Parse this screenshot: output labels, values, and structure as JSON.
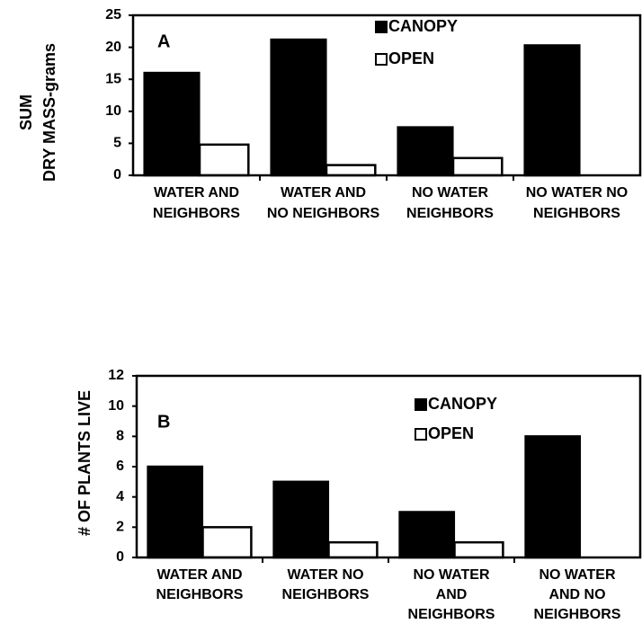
{
  "chart_data": [
    {
      "type": "bar",
      "label": "A",
      "ylabel": [
        "SUM",
        "DRY MASS-grams"
      ],
      "categories": [
        [
          "WATER AND",
          "NEIGHBORS"
        ],
        [
          "WATER AND",
          "NO NEIGHBORS"
        ],
        [
          "NO WATER",
          "NEIGHBORS"
        ],
        [
          "NO WATER NO",
          "NEIGHBORS"
        ]
      ],
      "series": [
        {
          "name": "CANOPY",
          "color": "#000000",
          "values": [
            16,
            21.2,
            7.5,
            20.3
          ]
        },
        {
          "name": "OPEN",
          "color": "#ffffff",
          "values": [
            4.8,
            1.6,
            2.7,
            0
          ]
        }
      ],
      "ylim": [
        0,
        25
      ],
      "yticks": [
        0,
        5,
        10,
        15,
        20,
        25
      ]
    },
    {
      "type": "bar",
      "label": "B",
      "ylabel": [
        "# OF PLANTS LIVE"
      ],
      "categories": [
        [
          "WATER  AND",
          "NEIGHBORS"
        ],
        [
          "WATER NO",
          "NEIGHBORS"
        ],
        [
          "NO WATER",
          "AND",
          "NEIGHBORS"
        ],
        [
          "NO WATER",
          "AND NO",
          "NEIGHBORS"
        ]
      ],
      "series": [
        {
          "name": "CANOPY",
          "color": "#000000",
          "values": [
            6,
            5,
            3,
            8
          ]
        },
        {
          "name": "OPEN",
          "color": "#ffffff",
          "values": [
            2,
            1,
            1,
            0
          ]
        }
      ],
      "ylim": [
        0,
        12
      ],
      "yticks": [
        0,
        2,
        4,
        6,
        8,
        10,
        12
      ]
    }
  ]
}
